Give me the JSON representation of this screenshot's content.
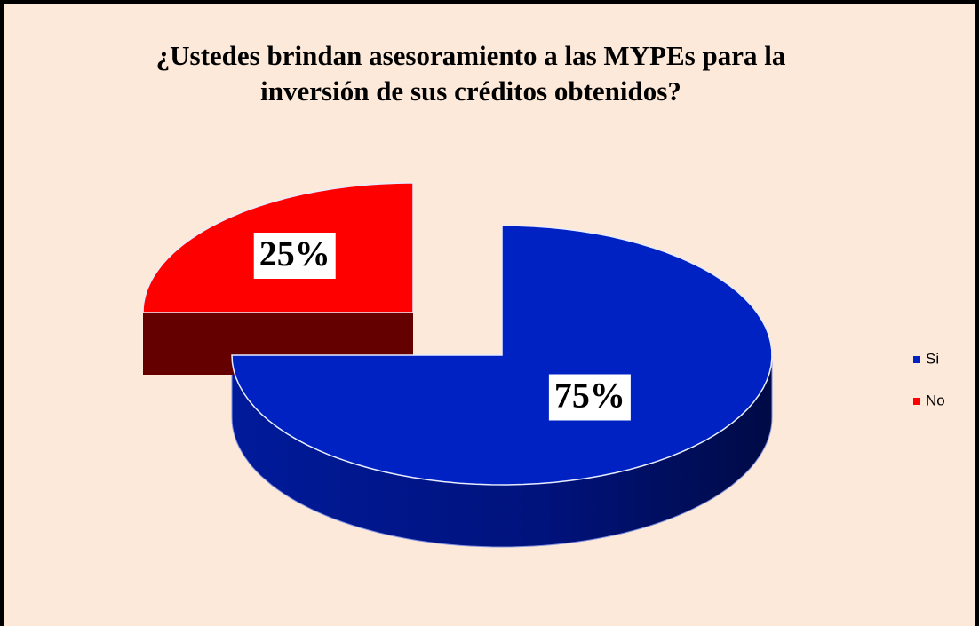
{
  "chart_data": {
    "type": "pie",
    "title": "¿Ustedes brindan asesoramiento a las MYPEs para la inversión de sus créditos obtenidos?",
    "categories": [
      "Si",
      "No"
    ],
    "values": [
      75,
      25
    ],
    "value_labels": [
      "75%",
      "25%"
    ],
    "colors": [
      "#0022c2",
      "#ff0000"
    ],
    "legend": "right"
  }
}
